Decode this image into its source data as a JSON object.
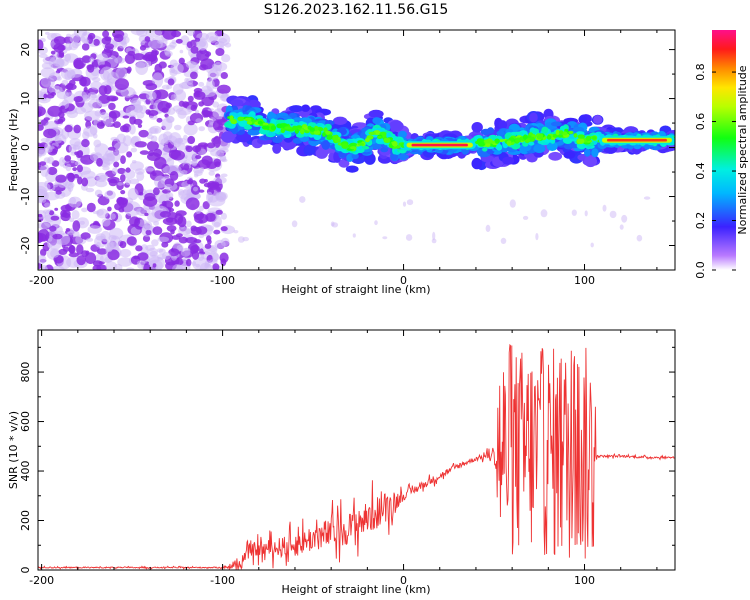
{
  "title": "S126.2023.162.11.56.G15",
  "colors": {
    "snr_line": "#ee3333",
    "scatter_main": "#8a2be2",
    "scatter_light": "#cdb8f5"
  },
  "colorbar": {
    "label": "Normalized spectral amplitude",
    "ticks": [
      "0.0",
      "0.2",
      "0.4",
      "0.6",
      "0.8"
    ],
    "tick_values": [
      0.0,
      0.2,
      0.4,
      0.6,
      0.8
    ],
    "range": [
      0.0,
      0.97
    ],
    "colormap": "rainbow: violet-blue-cyan-green-yellow-orange-red-magenta"
  },
  "chart_data": [
    {
      "type": "heatmap",
      "name": "spectrogram",
      "xlabel": "Height of straight line (km)",
      "ylabel": "Frequency (Hz)",
      "xlim": [
        -202,
        150
      ],
      "ylim": [
        -25,
        24
      ],
      "xticks": [
        -200,
        -100,
        0,
        100
      ],
      "xtick_labels": [
        "-200",
        "-100",
        "0",
        "100"
      ],
      "yticks": [
        -20,
        -10,
        0,
        10,
        20
      ],
      "ytick_labels": [
        "-20",
        "-10",
        "0",
        "10",
        "20"
      ],
      "noise_region_x": [
        -202,
        -97
      ],
      "ridge": [
        {
          "x": -97,
          "y": 6.0
        },
        {
          "x": -90,
          "y": 5.5
        },
        {
          "x": -85,
          "y": 5.5
        },
        {
          "x": -80,
          "y": 5.0
        },
        {
          "x": -75,
          "y": 4.0
        },
        {
          "x": -68,
          "y": 4.0
        },
        {
          "x": -60,
          "y": 4.0
        },
        {
          "x": -50,
          "y": 3.5
        },
        {
          "x": -42,
          "y": 3.0
        },
        {
          "x": -35,
          "y": 1.0
        },
        {
          "x": -28,
          "y": 0.0
        },
        {
          "x": -22,
          "y": 1.0
        },
        {
          "x": -15,
          "y": 3.0
        },
        {
          "x": -10,
          "y": 2.0
        },
        {
          "x": -5,
          "y": 0.5
        },
        {
          "x": 0,
          "y": 0.5
        },
        {
          "x": 10,
          "y": 0.5
        },
        {
          "x": 20,
          "y": 0.5
        },
        {
          "x": 30,
          "y": 0.5
        },
        {
          "x": 40,
          "y": 0.8
        },
        {
          "x": 50,
          "y": 1.0
        },
        {
          "x": 60,
          "y": 1.5
        },
        {
          "x": 70,
          "y": 2.0
        },
        {
          "x": 80,
          "y": 2.5
        },
        {
          "x": 90,
          "y": 3.0
        },
        {
          "x": 95,
          "y": 2.0
        },
        {
          "x": 100,
          "y": 1.5
        },
        {
          "x": 110,
          "y": 1.5
        },
        {
          "x": 120,
          "y": 1.5
        },
        {
          "x": 130,
          "y": 1.5
        },
        {
          "x": 140,
          "y": 1.5
        },
        {
          "x": 150,
          "y": 1.5
        }
      ],
      "peak_segments": [
        {
          "x0": 0,
          "x1": 40,
          "y": 0.5,
          "amplitude": 0.95
        },
        {
          "x0": 108,
          "x1": 150,
          "y": 1.5,
          "amplitude": 0.9
        }
      ]
    },
    {
      "type": "line",
      "name": "snr",
      "xlabel": "Height of straight line (km)",
      "ylabel": "SNR (10 * v/v)",
      "xlim": [
        -202,
        150
      ],
      "ylim": [
        0,
        970
      ],
      "xticks": [
        -200,
        -100,
        0,
        100
      ],
      "xtick_labels": [
        "-200",
        "-100",
        "0",
        "100"
      ],
      "yticks": [
        0,
        200,
        400,
        600,
        800
      ],
      "ytick_labels": [
        "0",
        "200",
        "400",
        "600",
        "800"
      ],
      "envelope": [
        {
          "x": -202,
          "y": 10
        },
        {
          "x": -100,
          "y": 10
        },
        {
          "x": -90,
          "y": 20
        },
        {
          "x": -85,
          "y": 80
        },
        {
          "x": -70,
          "y": 90
        },
        {
          "x": -60,
          "y": 100
        },
        {
          "x": -50,
          "y": 130
        },
        {
          "x": -40,
          "y": 150
        },
        {
          "x": -30,
          "y": 170
        },
        {
          "x": -20,
          "y": 210
        },
        {
          "x": -10,
          "y": 250
        },
        {
          "x": 0,
          "y": 300
        },
        {
          "x": 10,
          "y": 340
        },
        {
          "x": 20,
          "y": 380
        },
        {
          "x": 30,
          "y": 420
        },
        {
          "x": 40,
          "y": 450
        },
        {
          "x": 50,
          "y": 470
        },
        {
          "x": 55,
          "y": 470
        },
        {
          "x": 70,
          "y": 480
        },
        {
          "x": 85,
          "y": 470
        },
        {
          "x": 100,
          "y": 460
        },
        {
          "x": 108,
          "y": 460
        },
        {
          "x": 120,
          "y": 460
        },
        {
          "x": 135,
          "y": 455
        },
        {
          "x": 150,
          "y": 455
        }
      ],
      "oscillation_amplitude": [
        {
          "x": -202,
          "a": 5
        },
        {
          "x": -100,
          "a": 5
        },
        {
          "x": -85,
          "a": 60
        },
        {
          "x": -40,
          "a": 140
        },
        {
          "x": -10,
          "a": 150
        },
        {
          "x": 0,
          "a": 40
        },
        {
          "x": 40,
          "a": 20
        },
        {
          "x": 50,
          "a": 40
        },
        {
          "x": 52,
          "a": 420
        },
        {
          "x": 105,
          "a": 450
        },
        {
          "x": 107,
          "a": 10
        },
        {
          "x": 150,
          "a": 8
        }
      ]
    }
  ]
}
